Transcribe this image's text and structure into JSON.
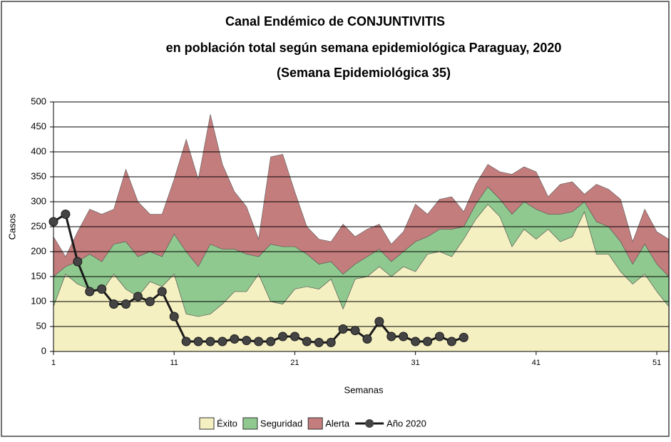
{
  "chart_data": {
    "type": "stacked-area",
    "title": "Canal Endémico de CONJUNTIVITIS",
    "subtitle": "en población total según semana epidemiológica Paraguay, 2020",
    "annotation": "(Semana  Epidemiológica 35)",
    "x_label": "Semanas",
    "y_label": "Casos",
    "x": [
      1,
      2,
      3,
      4,
      5,
      6,
      7,
      8,
      9,
      10,
      11,
      12,
      13,
      14,
      15,
      16,
      17,
      18,
      19,
      20,
      21,
      22,
      23,
      24,
      25,
      26,
      27,
      28,
      29,
      30,
      31,
      32,
      33,
      34,
      35,
      36,
      37,
      38,
      39,
      40,
      41,
      42,
      43,
      44,
      45,
      46,
      47,
      48,
      49,
      50,
      51,
      52
    ],
    "xlim": [
      1,
      52
    ],
    "xticks": [
      1,
      11,
      21,
      31,
      41,
      51
    ],
    "ylim": [
      0,
      500
    ],
    "yticks": [
      0,
      50,
      100,
      150,
      200,
      250,
      300,
      350,
      400,
      450,
      500
    ],
    "grid": true,
    "legend": "bottom",
    "series": [
      {
        "name": "Éxito",
        "color": "#f5f0c2",
        "kind": "area",
        "values": [
          90,
          155,
          135,
          125,
          120,
          155,
          125,
          110,
          140,
          130,
          155,
          75,
          70,
          75,
          95,
          120,
          120,
          155,
          100,
          95,
          125,
          130,
          125,
          145,
          85,
          145,
          150,
          170,
          150,
          170,
          160,
          195,
          200,
          190,
          225,
          265,
          295,
          270,
          210,
          245,
          225,
          245,
          220,
          230,
          280,
          195,
          195,
          160,
          135,
          155,
          120,
          90
        ]
      },
      {
        "name": "Seguridad",
        "color": "#90c98f",
        "kind": "area",
        "values": [
          60,
          15,
          45,
          70,
          60,
          60,
          95,
          80,
          60,
          60,
          80,
          125,
          100,
          140,
          110,
          85,
          75,
          35,
          115,
          115,
          85,
          65,
          50,
          35,
          70,
          30,
          40,
          35,
          30,
          30,
          60,
          35,
          45,
          55,
          25,
          30,
          35,
          35,
          65,
          55,
          60,
          30,
          55,
          50,
          20,
          65,
          55,
          60,
          40,
          60,
          55,
          60
        ]
      },
      {
        "name": "Alerta",
        "color": "#c47d7d",
        "kind": "area",
        "values": [
          80,
          20,
          60,
          90,
          95,
          70,
          145,
          110,
          75,
          85,
          110,
          225,
          175,
          260,
          170,
          115,
          95,
          35,
          175,
          185,
          110,
          55,
          50,
          40,
          100,
          55,
          55,
          50,
          35,
          40,
          75,
          45,
          60,
          65,
          30,
          40,
          45,
          55,
          80,
          70,
          75,
          35,
          60,
          60,
          15,
          75,
          75,
          85,
          45,
          70,
          65,
          75
        ]
      },
      {
        "name": "Año 2020",
        "color": "#1a1a1a",
        "kind": "line",
        "values": [
          260,
          275,
          180,
          120,
          125,
          95,
          95,
          110,
          100,
          120,
          70,
          20,
          20,
          20,
          20,
          25,
          22,
          20,
          20,
          30,
          30,
          20,
          18,
          18,
          45,
          42,
          25,
          60,
          30,
          30,
          20,
          20,
          30,
          20,
          28,
          null,
          null,
          null,
          null,
          null,
          null,
          null,
          null,
          null,
          null,
          null,
          null,
          null,
          null,
          null,
          null,
          null
        ]
      }
    ]
  }
}
